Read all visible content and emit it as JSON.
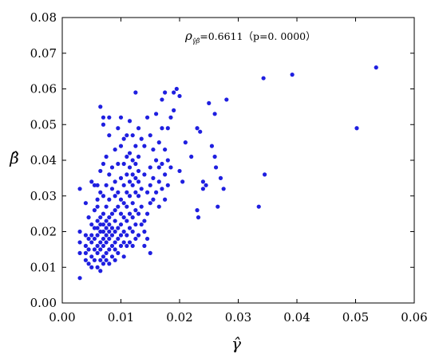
{
  "chart_data": {
    "type": "scatter",
    "xlabel": "γ̂",
    "ylabel": "β̂",
    "xlim": [
      0,
      0.06
    ],
    "ylim": [
      0,
      0.08
    ],
    "x_ticks": [
      "0.00",
      "0.01",
      "0.02",
      "0.03",
      "0.04",
      "0.05",
      "0.06"
    ],
    "y_ticks": [
      "0.00",
      "0.01",
      "0.02",
      "0.03",
      "0.04",
      "0.05",
      "0.06",
      "0.07",
      "0.08"
    ],
    "annotation": {
      "symbol": "ρ",
      "subscript": "γ̂β̂",
      "text": "=0.6611（p=0. 0000）"
    },
    "grid": false,
    "marker_color": "#1f1fe0",
    "series": [
      {
        "points": [
          [
            0.003,
            0.007
          ],
          [
            0.003,
            0.014
          ],
          [
            0.003,
            0.017
          ],
          [
            0.003,
            0.02
          ],
          [
            0.003,
            0.032
          ],
          [
            0.004,
            0.012
          ],
          [
            0.004,
            0.014
          ],
          [
            0.004,
            0.016
          ],
          [
            0.004,
            0.019
          ],
          [
            0.004,
            0.028
          ],
          [
            0.0045,
            0.011
          ],
          [
            0.0045,
            0.015
          ],
          [
            0.0045,
            0.018
          ],
          [
            0.0045,
            0.024
          ],
          [
            0.005,
            0.01
          ],
          [
            0.005,
            0.013
          ],
          [
            0.005,
            0.017
          ],
          [
            0.005,
            0.019
          ],
          [
            0.005,
            0.022
          ],
          [
            0.005,
            0.034
          ],
          [
            0.0055,
            0.012
          ],
          [
            0.0055,
            0.015
          ],
          [
            0.0055,
            0.018
          ],
          [
            0.0055,
            0.021
          ],
          [
            0.0055,
            0.026
          ],
          [
            0.0055,
            0.033
          ],
          [
            0.006,
            0.01
          ],
          [
            0.006,
            0.014
          ],
          [
            0.006,
            0.016
          ],
          [
            0.006,
            0.019
          ],
          [
            0.006,
            0.021
          ],
          [
            0.006,
            0.023
          ],
          [
            0.006,
            0.027
          ],
          [
            0.006,
            0.029
          ],
          [
            0.006,
            0.033
          ],
          [
            0.0065,
            0.009
          ],
          [
            0.0065,
            0.012
          ],
          [
            0.0065,
            0.015
          ],
          [
            0.0065,
            0.017
          ],
          [
            0.0065,
            0.02
          ],
          [
            0.0065,
            0.022
          ],
          [
            0.0065,
            0.024
          ],
          [
            0.0065,
            0.031
          ],
          [
            0.0065,
            0.037
          ],
          [
            0.0065,
            0.055
          ],
          [
            0.007,
            0.011
          ],
          [
            0.007,
            0.013
          ],
          [
            0.007,
            0.016
          ],
          [
            0.007,
            0.018
          ],
          [
            0.007,
            0.02
          ],
          [
            0.007,
            0.022
          ],
          [
            0.007,
            0.025
          ],
          [
            0.007,
            0.03
          ],
          [
            0.007,
            0.039
          ],
          [
            0.007,
            0.05
          ],
          [
            0.007,
            0.052
          ],
          [
            0.0075,
            0.012
          ],
          [
            0.0075,
            0.014
          ],
          [
            0.0075,
            0.017
          ],
          [
            0.0075,
            0.019
          ],
          [
            0.0075,
            0.021
          ],
          [
            0.0075,
            0.023
          ],
          [
            0.0075,
            0.027
          ],
          [
            0.0075,
            0.033
          ],
          [
            0.0075,
            0.041
          ],
          [
            0.008,
            0.011
          ],
          [
            0.008,
            0.015
          ],
          [
            0.008,
            0.018
          ],
          [
            0.008,
            0.02
          ],
          [
            0.008,
            0.022
          ],
          [
            0.008,
            0.024
          ],
          [
            0.008,
            0.029
          ],
          [
            0.008,
            0.036
          ],
          [
            0.008,
            0.047
          ],
          [
            0.008,
            0.052
          ],
          [
            0.0085,
            0.013
          ],
          [
            0.0085,
            0.016
          ],
          [
            0.0085,
            0.019
          ],
          [
            0.0085,
            0.021
          ],
          [
            0.0085,
            0.025
          ],
          [
            0.0085,
            0.032
          ],
          [
            0.0085,
            0.038
          ],
          [
            0.009,
            0.012
          ],
          [
            0.009,
            0.015
          ],
          [
            0.009,
            0.017
          ],
          [
            0.009,
            0.02
          ],
          [
            0.009,
            0.023
          ],
          [
            0.009,
            0.026
          ],
          [
            0.009,
            0.03
          ],
          [
            0.009,
            0.034
          ],
          [
            0.009,
            0.043
          ],
          [
            0.0095,
            0.014
          ],
          [
            0.0095,
            0.018
          ],
          [
            0.0095,
            0.021
          ],
          [
            0.0095,
            0.027
          ],
          [
            0.0095,
            0.031
          ],
          [
            0.0095,
            0.039
          ],
          [
            0.0095,
            0.049
          ],
          [
            0.01,
            0.016
          ],
          [
            0.01,
            0.019
          ],
          [
            0.01,
            0.022
          ],
          [
            0.01,
            0.025
          ],
          [
            0.01,
            0.029
          ],
          [
            0.01,
            0.035
          ],
          [
            0.01,
            0.044
          ],
          [
            0.01,
            0.052
          ],
          [
            0.0105,
            0.013
          ],
          [
            0.0105,
            0.017
          ],
          [
            0.0105,
            0.02
          ],
          [
            0.0105,
            0.024
          ],
          [
            0.0105,
            0.028
          ],
          [
            0.0105,
            0.033
          ],
          [
            0.0105,
            0.039
          ],
          [
            0.0105,
            0.046
          ],
          [
            0.011,
            0.016
          ],
          [
            0.011,
            0.019
          ],
          [
            0.011,
            0.023
          ],
          [
            0.011,
            0.027
          ],
          [
            0.011,
            0.031
          ],
          [
            0.011,
            0.036
          ],
          [
            0.011,
            0.041
          ],
          [
            0.011,
            0.047
          ],
          [
            0.0115,
            0.017
          ],
          [
            0.0115,
            0.021
          ],
          [
            0.0115,
            0.025
          ],
          [
            0.0115,
            0.03
          ],
          [
            0.0115,
            0.034
          ],
          [
            0.0115,
            0.038
          ],
          [
            0.0115,
            0.042
          ],
          [
            0.0115,
            0.051
          ],
          [
            0.012,
            0.016
          ],
          [
            0.012,
            0.02
          ],
          [
            0.012,
            0.024
          ],
          [
            0.012,
            0.028
          ],
          [
            0.012,
            0.033
          ],
          [
            0.012,
            0.036
          ],
          [
            0.012,
            0.04
          ],
          [
            0.012,
            0.047
          ],
          [
            0.0125,
            0.018
          ],
          [
            0.0125,
            0.022
          ],
          [
            0.0125,
            0.026
          ],
          [
            0.0125,
            0.031
          ],
          [
            0.0125,
            0.035
          ],
          [
            0.0125,
            0.039
          ],
          [
            0.0125,
            0.044
          ],
          [
            0.0125,
            0.059
          ],
          [
            0.013,
            0.019
          ],
          [
            0.013,
            0.025
          ],
          [
            0.013,
            0.03
          ],
          [
            0.013,
            0.034
          ],
          [
            0.013,
            0.037
          ],
          [
            0.013,
            0.041
          ],
          [
            0.013,
            0.049
          ],
          [
            0.0135,
            0.022
          ],
          [
            0.0135,
            0.027
          ],
          [
            0.0135,
            0.032
          ],
          [
            0.0135,
            0.046
          ],
          [
            0.014,
            0.016
          ],
          [
            0.014,
            0.02
          ],
          [
            0.014,
            0.023
          ],
          [
            0.014,
            0.036
          ],
          [
            0.014,
            0.044
          ],
          [
            0.0145,
            0.018
          ],
          [
            0.0145,
            0.025
          ],
          [
            0.0145,
            0.031
          ],
          [
            0.0145,
            0.052
          ],
          [
            0.015,
            0.014
          ],
          [
            0.015,
            0.028
          ],
          [
            0.015,
            0.033
          ],
          [
            0.015,
            0.038
          ],
          [
            0.015,
            0.047
          ],
          [
            0.0155,
            0.029
          ],
          [
            0.0155,
            0.035
          ],
          [
            0.0155,
            0.043
          ],
          [
            0.016,
            0.031
          ],
          [
            0.016,
            0.04
          ],
          [
            0.016,
            0.053
          ],
          [
            0.0165,
            0.027
          ],
          [
            0.0165,
            0.034
          ],
          [
            0.0165,
            0.038
          ],
          [
            0.0165,
            0.045
          ],
          [
            0.017,
            0.032
          ],
          [
            0.017,
            0.039
          ],
          [
            0.017,
            0.049
          ],
          [
            0.017,
            0.057
          ],
          [
            0.0175,
            0.029
          ],
          [
            0.0175,
            0.036
          ],
          [
            0.0175,
            0.043
          ],
          [
            0.0175,
            0.059
          ],
          [
            0.018,
            0.033
          ],
          [
            0.018,
            0.04
          ],
          [
            0.018,
            0.049
          ],
          [
            0.0185,
            0.038
          ],
          [
            0.0185,
            0.052
          ],
          [
            0.019,
            0.054
          ],
          [
            0.019,
            0.059
          ],
          [
            0.0195,
            0.06
          ],
          [
            0.02,
            0.037
          ],
          [
            0.02,
            0.058
          ],
          [
            0.0205,
            0.034
          ],
          [
            0.021,
            0.045
          ],
          [
            0.022,
            0.041
          ],
          [
            0.023,
            0.049
          ],
          [
            0.023,
            0.026
          ],
          [
            0.0232,
            0.024
          ],
          [
            0.0235,
            0.048
          ],
          [
            0.024,
            0.034
          ],
          [
            0.024,
            0.032
          ],
          [
            0.0245,
            0.033
          ],
          [
            0.025,
            0.056
          ],
          [
            0.0255,
            0.044
          ],
          [
            0.026,
            0.053
          ],
          [
            0.026,
            0.041
          ],
          [
            0.0262,
            0.038
          ],
          [
            0.0265,
            0.027
          ],
          [
            0.027,
            0.035
          ],
          [
            0.0275,
            0.032
          ],
          [
            0.028,
            0.057
          ],
          [
            0.0335,
            0.027
          ],
          [
            0.0343,
            0.063
          ],
          [
            0.0345,
            0.036
          ],
          [
            0.0392,
            0.064
          ],
          [
            0.0502,
            0.049
          ],
          [
            0.0535,
            0.066
          ]
        ]
      }
    ]
  }
}
